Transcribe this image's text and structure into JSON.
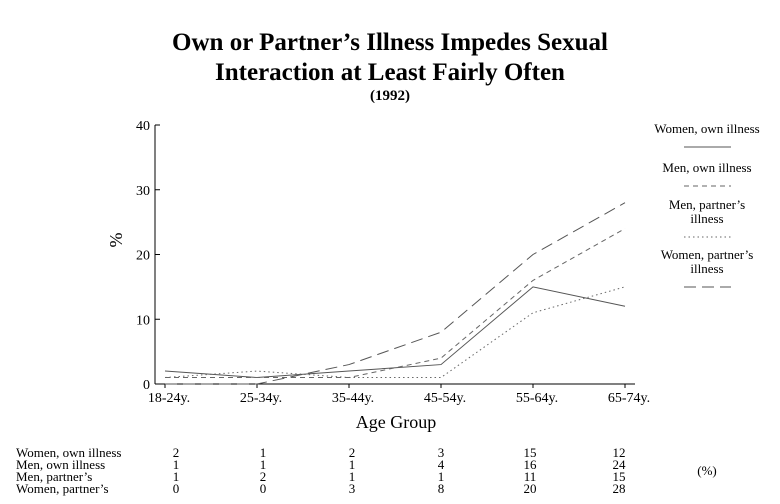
{
  "chart_data": {
    "type": "line",
    "title": "Own or Partner’s Illness Impedes Sexual\nInteraction at Least Fairly Often",
    "subtitle": "(1992)",
    "xlabel": "Age Group",
    "ylabel": "%",
    "ylim": [
      0,
      40
    ],
    "yticks": [
      "0",
      "10",
      "20",
      "30",
      "40"
    ],
    "categories": [
      "18-24y.",
      "25-34y.",
      "35-44y.",
      "45-54y.",
      "55-64y.",
      "65-74y."
    ],
    "grid": false,
    "legend_position": "right",
    "series": [
      {
        "name": "Women, own illness",
        "legend_lines": [
          "Women, own illness"
        ],
        "table_label": "Women, own illness",
        "dash": "solid",
        "color": "#555555",
        "values": [
          2,
          1,
          2,
          3,
          15,
          12
        ]
      },
      {
        "name": "Men, own illness",
        "legend_lines": [
          "Men, own illness"
        ],
        "table_label": "Men, own illness",
        "dash": "short-dash",
        "color": "#666666",
        "values": [
          1,
          1,
          1,
          4,
          16,
          24
        ]
      },
      {
        "name": "Men, partner’s illness",
        "legend_lines": [
          "Men, partner’s",
          "illness"
        ],
        "table_label": "Men, partner’s",
        "dash": "dotted",
        "color": "#666666",
        "values": [
          1,
          2,
          1,
          1,
          11,
          15
        ]
      },
      {
        "name": "Women, partner’s illness",
        "legend_lines": [
          "Women, partner’s",
          "illness"
        ],
        "table_label": "Women, partner’s",
        "dash": "long-dash",
        "color": "#555555",
        "values": [
          0,
          0,
          3,
          8,
          20,
          28
        ]
      }
    ],
    "table_unit": "(%)"
  }
}
